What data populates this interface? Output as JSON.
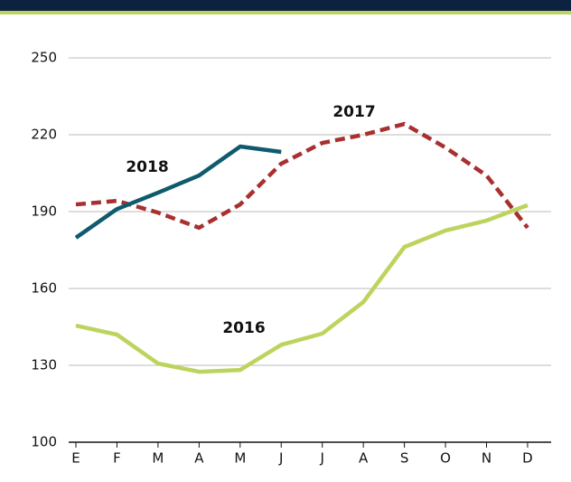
{
  "chart_data": {
    "type": "line",
    "categories": [
      "E",
      "F",
      "M",
      "A",
      "M",
      "J",
      "J",
      "A",
      "S",
      "O",
      "N",
      "D"
    ],
    "series": [
      {
        "name": "2016",
        "color": "#bcd45e",
        "values": [
          145.5,
          142,
          130.7,
          127.5,
          128.2,
          138,
          142.4,
          154.7,
          176.2,
          182.6,
          186.5,
          192.5
        ]
      },
      {
        "name": "2017",
        "color": "#a8302f",
        "dashed": true,
        "values": [
          192.8,
          194.2,
          189.6,
          183.7,
          192.8,
          208.7,
          216.8,
          220,
          224.2,
          215,
          204.1,
          183.7
        ]
      },
      {
        "name": "2018",
        "color": "#0e5b6d",
        "values": [
          179.8,
          191,
          197.4,
          204.1,
          215.4,
          213.3,
          null,
          null,
          null,
          null,
          null,
          null
        ]
      }
    ],
    "ylim": [
      100,
      250
    ],
    "yticks": [
      100,
      130,
      160,
      190,
      220,
      250
    ],
    "grid": true
  }
}
